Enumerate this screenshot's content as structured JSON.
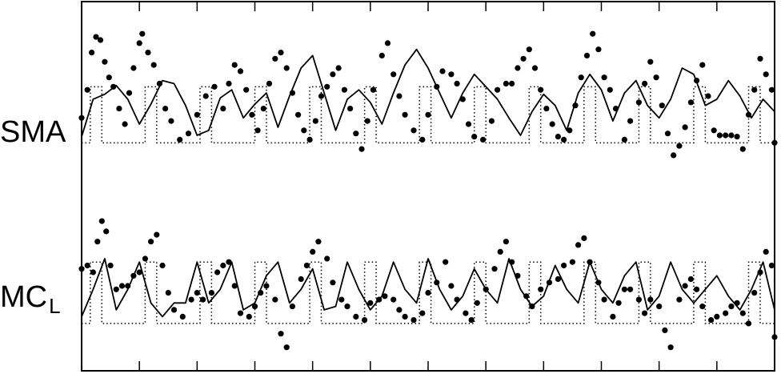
{
  "chart_data": {
    "type": "line",
    "title": "",
    "xlabel": "",
    "ylabel": "",
    "x_range": [
      0,
      24
    ],
    "x_ticks": [
      0,
      2,
      4,
      6,
      8,
      10,
      12,
      14,
      16,
      18,
      20,
      22,
      24
    ],
    "x_tick_labels_shown": false,
    "grid": false,
    "legend": "none",
    "colors": {
      "line": "#000000",
      "points": "#000000",
      "stimulus": "#000000"
    },
    "panels": [
      {
        "name": "SMA",
        "y_range": [
          -0.6,
          2.1
        ],
        "stimulus_blocks": [
          [
            0.3,
            0.7
          ],
          [
            2.2,
            2.6
          ],
          [
            4.1,
            4.5
          ],
          [
            6.0,
            6.4
          ],
          [
            7.9,
            8.3
          ],
          [
            9.8,
            10.2
          ],
          [
            11.7,
            12.1
          ],
          [
            13.6,
            14.0
          ],
          [
            15.5,
            15.9
          ],
          [
            17.4,
            17.8
          ],
          [
            19.3,
            19.7
          ],
          [
            21.2,
            21.6
          ],
          [
            23.1,
            23.5
          ]
        ],
        "stimulus_amplitude": 0.9,
        "fitted_x": [
          0,
          0.4,
          0.8,
          1.2,
          1.6,
          2.0,
          2.4,
          2.8,
          3.2,
          3.6,
          4.0,
          4.4,
          4.8,
          5.2,
          5.6,
          6.0,
          6.4,
          6.8,
          7.2,
          7.6,
          8.0,
          8.4,
          8.8,
          9.2,
          9.6,
          10.0,
          10.4,
          10.8,
          11.2,
          11.6,
          12.0,
          12.4,
          12.8,
          13.2,
          13.6,
          14.0,
          14.4,
          14.8,
          15.2,
          15.6,
          16.0,
          16.4,
          16.8,
          17.2,
          17.6,
          18.0,
          18.4,
          18.8,
          19.2,
          19.6,
          20.0,
          20.4,
          20.8,
          21.2,
          21.6,
          22.0,
          22.4,
          22.8,
          23.2,
          23.6,
          24.0
        ],
        "fitted_y": [
          0.1,
          0.7,
          0.78,
          0.92,
          0.7,
          0.3,
          0.62,
          1.0,
          0.95,
          0.6,
          0.12,
          0.2,
          0.72,
          0.85,
          0.4,
          0.62,
          0.8,
          0.25,
          0.75,
          1.2,
          1.4,
          0.8,
          0.2,
          0.7,
          0.85,
          0.65,
          0.3,
          0.8,
          1.25,
          1.5,
          1.2,
          0.8,
          0.4,
          0.8,
          1.1,
          0.9,
          0.7,
          0.4,
          0.12,
          0.5,
          0.78,
          0.6,
          0.2,
          0.8,
          1.1,
          0.85,
          0.35,
          0.8,
          1.0,
          0.6,
          0.4,
          0.7,
          1.2,
          1.1,
          0.6,
          0.7,
          1.0,
          0.75,
          0.4,
          0.7,
          0.5
        ],
        "observed": [
          [
            0.0,
            0.4
          ],
          [
            0.2,
            0.85
          ],
          [
            0.35,
            1.45
          ],
          [
            0.5,
            1.7
          ],
          [
            0.65,
            1.65
          ],
          [
            0.8,
            1.3
          ],
          [
            0.95,
            1.05
          ],
          [
            1.1,
            0.9
          ],
          [
            1.3,
            0.55
          ],
          [
            1.5,
            0.3
          ],
          [
            1.65,
            0.8
          ],
          [
            1.8,
            1.2
          ],
          [
            2.0,
            1.6
          ],
          [
            2.1,
            1.75
          ],
          [
            2.3,
            1.45
          ],
          [
            2.5,
            1.25
          ],
          [
            2.7,
            0.95
          ],
          [
            2.9,
            0.55
          ],
          [
            3.1,
            0.35
          ],
          [
            3.4,
            0.05
          ],
          [
            3.7,
            0.15
          ],
          [
            4.0,
            0.45
          ],
          [
            4.3,
            0.75
          ],
          [
            4.6,
            0.9
          ],
          [
            4.9,
            0.55
          ],
          [
            5.1,
            0.95
          ],
          [
            5.3,
            1.25
          ],
          [
            5.5,
            1.15
          ],
          [
            5.7,
            0.85
          ],
          [
            5.9,
            0.45
          ],
          [
            6.1,
            0.2
          ],
          [
            6.3,
            0.55
          ],
          [
            6.5,
            0.95
          ],
          [
            6.7,
            1.35
          ],
          [
            6.9,
            1.45
          ],
          [
            7.1,
            1.2
          ],
          [
            7.3,
            0.8
          ],
          [
            7.5,
            0.45
          ],
          [
            7.7,
            0.2
          ],
          [
            7.9,
            0.05
          ],
          [
            8.1,
            0.35
          ],
          [
            8.3,
            0.75
          ],
          [
            8.5,
            0.9
          ],
          [
            8.7,
            1.1
          ],
          [
            8.9,
            1.2
          ],
          [
            9.1,
            0.85
          ],
          [
            9.3,
            0.55
          ],
          [
            9.5,
            0.15
          ],
          [
            9.7,
            -0.1
          ],
          [
            9.9,
            0.35
          ],
          [
            10.1,
            0.85
          ],
          [
            10.4,
            1.4
          ],
          [
            10.6,
            1.6
          ],
          [
            10.8,
            1.1
          ],
          [
            11.0,
            0.75
          ],
          [
            11.2,
            0.45
          ],
          [
            11.5,
            0.2
          ],
          [
            11.8,
            0.05
          ],
          [
            12.0,
            0.45
          ],
          [
            12.3,
            0.9
          ],
          [
            12.5,
            1.15
          ],
          [
            12.8,
            1.1
          ],
          [
            13.0,
            0.95
          ],
          [
            13.2,
            0.7
          ],
          [
            13.4,
            0.3
          ],
          [
            13.6,
            0.1
          ],
          [
            13.9,
            0.05
          ],
          [
            14.2,
            0.35
          ],
          [
            14.4,
            0.85
          ],
          [
            14.7,
            0.95
          ],
          [
            14.9,
            0.95
          ],
          [
            15.1,
            1.2
          ],
          [
            15.3,
            1.35
          ],
          [
            15.5,
            1.5
          ],
          [
            15.7,
            1.2
          ],
          [
            15.9,
            0.85
          ],
          [
            16.1,
            0.55
          ],
          [
            16.3,
            0.3
          ],
          [
            16.5,
            0.1
          ],
          [
            16.7,
            0.05
          ],
          [
            16.9,
            0.2
          ],
          [
            17.1,
            0.6
          ],
          [
            17.3,
            1.05
          ],
          [
            17.5,
            1.4
          ],
          [
            17.7,
            1.75
          ],
          [
            17.9,
            1.5
          ],
          [
            18.1,
            1.05
          ],
          [
            18.3,
            0.85
          ],
          [
            18.5,
            0.55
          ],
          [
            18.8,
            0.05
          ],
          [
            19.0,
            0.35
          ],
          [
            19.3,
            0.65
          ],
          [
            19.5,
            0.95
          ],
          [
            19.7,
            1.3
          ],
          [
            19.9,
            1.05
          ],
          [
            20.1,
            0.6
          ],
          [
            20.3,
            0.15
          ],
          [
            20.5,
            -0.2
          ],
          [
            20.7,
            -0.05
          ],
          [
            20.9,
            0.25
          ],
          [
            21.1,
            0.65
          ],
          [
            21.3,
            1.0
          ],
          [
            21.5,
            1.25
          ],
          [
            21.7,
            0.75
          ],
          [
            21.9,
            0.2
          ],
          [
            22.1,
            0.12
          ],
          [
            22.3,
            0.12
          ],
          [
            22.5,
            0.12
          ],
          [
            22.7,
            0.1
          ],
          [
            22.9,
            -0.1
          ],
          [
            23.1,
            0.45
          ],
          [
            23.3,
            0.85
          ],
          [
            23.5,
            1.35
          ],
          [
            23.7,
            1.1
          ],
          [
            23.9,
            0.85
          ],
          [
            24.0,
            0.0
          ]
        ]
      },
      {
        "name": "MC",
        "name_subscript": "L",
        "y_range": [
          -0.6,
          2.1
        ],
        "stimulus_blocks": [
          [
            0.3,
            0.7
          ],
          [
            2.2,
            2.6
          ],
          [
            4.1,
            4.5
          ],
          [
            6.0,
            6.4
          ],
          [
            7.9,
            8.3
          ],
          [
            9.8,
            10.2
          ],
          [
            11.7,
            12.1
          ],
          [
            13.6,
            14.0
          ],
          [
            15.5,
            15.9
          ],
          [
            17.4,
            17.8
          ],
          [
            19.3,
            19.7
          ],
          [
            21.2,
            21.6
          ],
          [
            23.1,
            23.5
          ]
        ],
        "stimulus_amplitude": 0.9,
        "fitted_x": [
          0,
          0.4,
          0.8,
          1.2,
          1.6,
          2.0,
          2.4,
          2.8,
          3.2,
          3.6,
          4.0,
          4.4,
          4.8,
          5.2,
          5.6,
          6.0,
          6.4,
          6.8,
          7.2,
          7.6,
          8.0,
          8.4,
          8.8,
          9.2,
          9.6,
          10.0,
          10.4,
          10.8,
          11.2,
          11.6,
          12.0,
          12.4,
          12.8,
          13.2,
          13.6,
          14.0,
          14.4,
          14.8,
          15.2,
          15.6,
          16.0,
          16.4,
          16.8,
          17.2,
          17.6,
          18.0,
          18.4,
          18.8,
          19.2,
          19.6,
          20.0,
          20.4,
          20.8,
          21.2,
          21.6,
          22.0,
          22.4,
          22.8,
          23.2,
          23.6,
          24.0
        ],
        "fitted_y": [
          0.1,
          0.5,
          0.95,
          0.2,
          0.5,
          0.9,
          0.3,
          0.1,
          0.3,
          0.3,
          0.9,
          0.3,
          0.5,
          0.9,
          0.2,
          0.3,
          0.7,
          0.9,
          0.3,
          0.5,
          0.8,
          0.2,
          0.25,
          0.9,
          0.5,
          0.2,
          0.4,
          0.9,
          0.5,
          0.3,
          0.95,
          0.5,
          0.2,
          0.4,
          0.8,
          0.5,
          0.3,
          0.95,
          0.5,
          0.25,
          0.4,
          0.85,
          0.5,
          0.3,
          0.9,
          0.5,
          0.3,
          0.7,
          0.9,
          0.2,
          0.4,
          0.9,
          0.5,
          0.3,
          0.5,
          0.7,
          0.4,
          0.2,
          0.5,
          0.9,
          0.2
        ],
        "observed": [
          [
            0.0,
            0.8
          ],
          [
            0.2,
            0.85
          ],
          [
            0.4,
            0.75
          ],
          [
            0.55,
            1.2
          ],
          [
            0.7,
            1.5
          ],
          [
            0.85,
            1.35
          ],
          [
            1.0,
            0.85
          ],
          [
            1.2,
            0.5
          ],
          [
            1.4,
            0.55
          ],
          [
            1.6,
            0.55
          ],
          [
            1.8,
            0.7
          ],
          [
            2.0,
            0.75
          ],
          [
            2.2,
            0.95
          ],
          [
            2.4,
            1.2
          ],
          [
            2.6,
            1.3
          ],
          [
            2.8,
            0.85
          ],
          [
            3.0,
            0.45
          ],
          [
            3.2,
            0.2
          ],
          [
            3.5,
            0.1
          ],
          [
            3.8,
            0.35
          ],
          [
            4.0,
            0.45
          ],
          [
            4.2,
            0.35
          ],
          [
            4.5,
            0.45
          ],
          [
            4.7,
            0.75
          ],
          [
            4.9,
            0.85
          ],
          [
            5.1,
            0.9
          ],
          [
            5.3,
            0.55
          ],
          [
            5.5,
            0.15
          ],
          [
            5.8,
            0.1
          ],
          [
            6.0,
            0.25
          ],
          [
            6.2,
            0.45
          ],
          [
            6.4,
            0.55
          ],
          [
            6.7,
            0.35
          ],
          [
            6.9,
            -0.15
          ],
          [
            7.1,
            -0.35
          ],
          [
            7.3,
            0.25
          ],
          [
            7.6,
            0.65
          ],
          [
            7.8,
            0.85
          ],
          [
            8.0,
            1.05
          ],
          [
            8.2,
            1.2
          ],
          [
            8.5,
            0.95
          ],
          [
            8.7,
            0.6
          ],
          [
            9.0,
            0.35
          ],
          [
            9.2,
            0.25
          ],
          [
            9.5,
            0.1
          ],
          [
            9.8,
            0.05
          ],
          [
            10.0,
            0.3
          ],
          [
            10.3,
            0.35
          ],
          [
            10.5,
            0.4
          ],
          [
            10.8,
            0.35
          ],
          [
            11.0,
            0.2
          ],
          [
            11.2,
            0.1
          ],
          [
            11.5,
            0.05
          ],
          [
            11.8,
            0.15
          ],
          [
            12.0,
            0.45
          ],
          [
            12.3,
            0.6
          ],
          [
            12.6,
            0.9
          ],
          [
            12.8,
            0.55
          ],
          [
            13.0,
            0.35
          ],
          [
            13.3,
            0.15
          ],
          [
            13.5,
            0.05
          ],
          [
            13.7,
            0.3
          ],
          [
            14.0,
            0.5
          ],
          [
            14.3,
            0.8
          ],
          [
            14.5,
            1.05
          ],
          [
            14.7,
            1.2
          ],
          [
            14.9,
            0.9
          ],
          [
            15.1,
            0.7
          ],
          [
            15.4,
            0.4
          ],
          [
            15.6,
            0.25
          ],
          [
            15.9,
            0.5
          ],
          [
            16.2,
            0.6
          ],
          [
            16.5,
            0.65
          ],
          [
            16.7,
            0.85
          ],
          [
            17.0,
            0.9
          ],
          [
            17.2,
            1.15
          ],
          [
            17.4,
            1.25
          ],
          [
            17.6,
            0.9
          ],
          [
            17.9,
            0.6
          ],
          [
            18.1,
            0.35
          ],
          [
            18.4,
            0.1
          ],
          [
            18.6,
            0.3
          ],
          [
            18.8,
            0.5
          ],
          [
            19.0,
            0.5
          ],
          [
            19.3,
            0.35
          ],
          [
            19.5,
            0.15
          ],
          [
            19.7,
            0.35
          ],
          [
            20.0,
            0.25
          ],
          [
            20.2,
            -0.1
          ],
          [
            20.4,
            -0.35
          ],
          [
            20.7,
            0.35
          ],
          [
            20.9,
            0.55
          ],
          [
            21.1,
            0.65
          ],
          [
            21.3,
            0.5
          ],
          [
            21.5,
            0.25
          ],
          [
            21.8,
            0.05
          ],
          [
            22.0,
            0.1
          ],
          [
            22.3,
            0.15
          ],
          [
            22.5,
            0.25
          ],
          [
            22.7,
            0.3
          ],
          [
            22.9,
            0.15
          ],
          [
            23.1,
            0.0
          ],
          [
            23.3,
            0.45
          ],
          [
            23.5,
            0.75
          ],
          [
            23.7,
            1.05
          ],
          [
            23.9,
            0.85
          ],
          [
            24.0,
            -0.2
          ]
        ]
      }
    ]
  }
}
